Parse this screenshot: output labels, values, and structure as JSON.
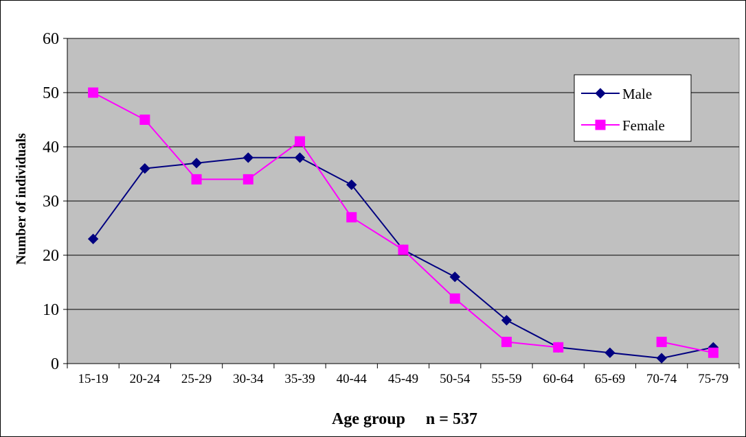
{
  "chart_data": {
    "type": "line",
    "title": "",
    "xlabel": "Age group     n = 537",
    "ylabel": "Number of individuals",
    "categories": [
      "15-19",
      "20-24",
      "25-29",
      "30-34",
      "35-39",
      "40-44",
      "45-49",
      "50-54",
      "55-59",
      "60-64",
      "65-69",
      "70-74",
      "75-79"
    ],
    "y_ticks": [
      "0",
      "10",
      "20",
      "30",
      "40",
      "50",
      "60"
    ],
    "ylim": [
      0,
      60
    ],
    "grid": "horizontal",
    "plot_background": "#C0C0C0",
    "legend_position": "top-right",
    "series": [
      {
        "name": "Male",
        "color": "#000080",
        "marker": "diamond",
        "values": [
          23,
          36,
          37,
          38,
          38,
          33,
          21,
          16,
          8,
          3,
          2,
          1,
          3
        ]
      },
      {
        "name": "Female",
        "color": "#FF00FF",
        "marker": "square",
        "values": [
          50,
          45,
          34,
          34,
          41,
          27,
          21,
          12,
          4,
          3,
          null,
          4,
          2
        ]
      }
    ]
  }
}
